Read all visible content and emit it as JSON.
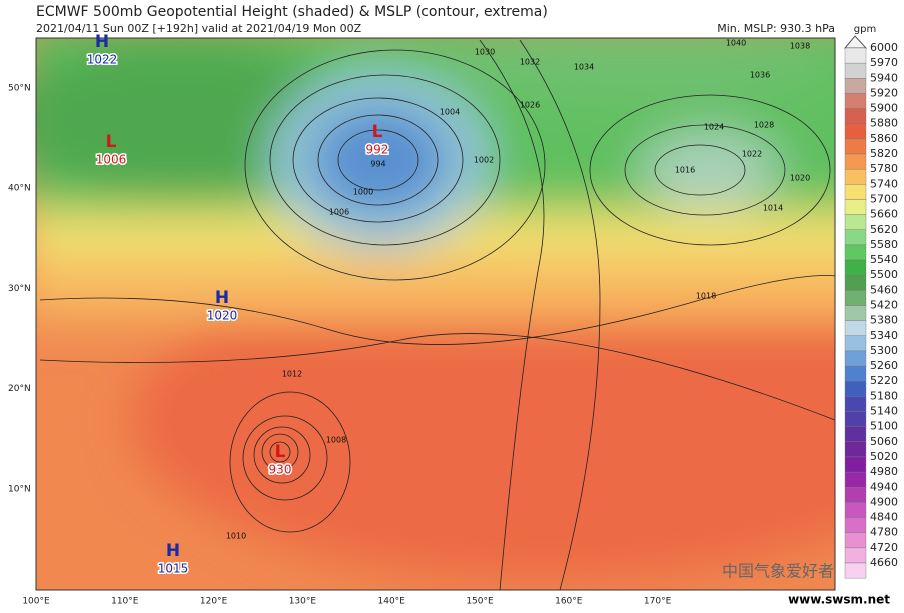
{
  "header": {
    "title": "ECMWF 500mb Geopotential Height (shaded) & MSLP (contour, extrema)",
    "subtitle": "2021/04/11 Sun 00Z [+192h] valid at 2021/04/19 Mon 00Z",
    "min_mslp": "Min. MSLP: 930.3 hPa"
  },
  "colorbar": {
    "unit": "gpm",
    "labels": [
      "6000",
      "5970",
      "5940",
      "5920",
      "5900",
      "5880",
      "5860",
      "5820",
      "5780",
      "5740",
      "5700",
      "5660",
      "5620",
      "5580",
      "5540",
      "5500",
      "5460",
      "5420",
      "5380",
      "5340",
      "5300",
      "5260",
      "5220",
      "5180",
      "5140",
      "5100",
      "5060",
      "5020",
      "4980",
      "4940",
      "4900",
      "4840",
      "4780",
      "4720",
      "4660"
    ],
    "colors": [
      "#e8e8e8",
      "#d2d2d2",
      "#c8a8a0",
      "#d48070",
      "#d86050",
      "#e66040",
      "#ee7a48",
      "#f49a50",
      "#f8c060",
      "#f8e070",
      "#e8ee88",
      "#b8e890",
      "#88d888",
      "#60c860",
      "#40b048",
      "#50a050",
      "#70b070",
      "#a0c8a8",
      "#c0d8e8",
      "#98c0e0",
      "#70a0d8",
      "#5080d0",
      "#4060c0",
      "#4848b0",
      "#5040a8",
      "#6030a0",
      "#702898",
      "#8020a0",
      "#9828a8",
      "#b040b0",
      "#c858c0",
      "#d870c8",
      "#e890d0",
      "#f0b0e0",
      "#f8d0f0"
    ]
  },
  "latitudes": [
    "50°N",
    "40°N",
    "30°N",
    "20°N",
    "10°N"
  ],
  "longitudes": [
    "100°E",
    "110°E",
    "120°E",
    "130°E",
    "140°E",
    "150°E",
    "160°E",
    "170°E"
  ],
  "centers": [
    {
      "type": "H",
      "value": "1022"
    },
    {
      "type": "L",
      "value": "1006"
    },
    {
      "type": "L",
      "value": "992"
    },
    {
      "type": "H",
      "value": "1020"
    },
    {
      "type": "L",
      "value": "930"
    },
    {
      "type": "H",
      "value": "1015"
    }
  ],
  "contour_labels": [
    "1030",
    "1032",
    "1034",
    "1026",
    "1040",
    "1038",
    "1036",
    "1024",
    "1028",
    "1022",
    "1020",
    "1016",
    "1014",
    "1012",
    "1018",
    "1004",
    "1002",
    "1008",
    "1006",
    "1000",
    "994",
    "1010"
  ],
  "watermark": {
    "name": "中国气象爱好者",
    "url": "www.swsm.net"
  }
}
